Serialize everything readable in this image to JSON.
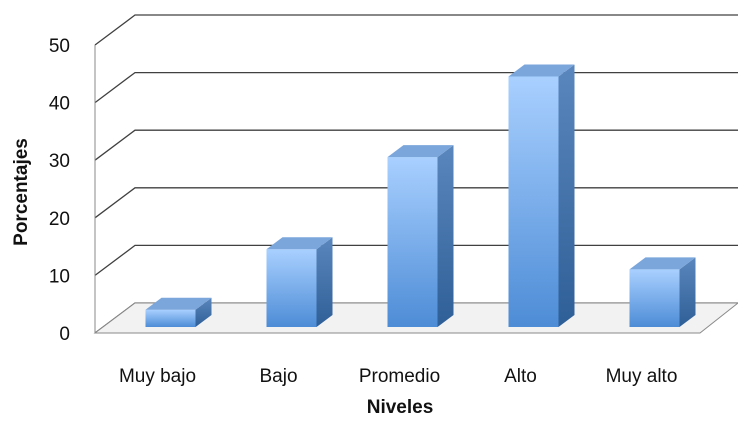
{
  "chart_data": {
    "type": "bar",
    "style": "3d-column",
    "categories": [
      "Muy bajo",
      "Bajo",
      "Promedio",
      "Alto",
      "Muy alto"
    ],
    "values": [
      3,
      13.5,
      29.5,
      43.5,
      10
    ],
    "xlabel": "Niveles",
    "ylabel": "Porcentajes",
    "ylim": [
      0,
      50
    ],
    "yticks": [
      "0",
      "10",
      "20",
      "30",
      "40",
      "50"
    ],
    "grid": true,
    "legend": "none",
    "colors": {
      "bar_front": "#5b9be0",
      "bar_side": "#3f6fa3",
      "bar_top": "#7aa6dc",
      "grid": "#404040"
    }
  }
}
